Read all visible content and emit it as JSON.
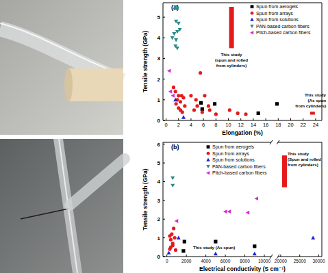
{
  "chart_data": [
    {
      "type": "scatter",
      "label": "(a)",
      "x_label": "Elongation (%)",
      "y_label": "Tensile strength (GPa)",
      "xlim": [
        -0.5,
        25
      ],
      "ylim": [
        0,
        5.7
      ],
      "xticks": [
        0,
        2,
        4,
        6,
        8,
        10,
        12,
        14,
        16,
        18,
        20,
        22,
        24
      ],
      "yticks": [
        0,
        1,
        2,
        3,
        4,
        5
      ],
      "legend": "top",
      "series": [
        {
          "name": "Spun from aerogels",
          "color": "#000000",
          "marker": "square",
          "x": [
            5.6,
            5.8,
            7.8,
            14.8,
            17.8
          ],
          "y": [
            0.85,
            0.55,
            0.8,
            0.35,
            0.8
          ]
        },
        {
          "name": "Spun from arrays",
          "color": "#e41a1c",
          "marker": "circle",
          "x": [
            1.2,
            1.5,
            1.8,
            2.0,
            2.3,
            2.5,
            2.8,
            1.6,
            2.0,
            2.3,
            3.0,
            2.6,
            4.0,
            4.5,
            4.8,
            5.0,
            5.5,
            5.8,
            6.2,
            6.8,
            7.0,
            8.0,
            10.2,
            11.5,
            12.8
          ],
          "y": [
            1.6,
            1.4,
            1.0,
            1.2,
            0.9,
            1.2,
            1.1,
            0.8,
            0.6,
            0.5,
            0.7,
            0.4,
            1.2,
            0.5,
            1.0,
            0.7,
            2.3,
            0.4,
            1.2,
            0.7,
            0.5,
            0.3,
            0.5,
            0.35,
            0.3
          ]
        },
        {
          "name": "Spun from solutions",
          "color": "#1f1fd6",
          "marker": "triangle-up",
          "x": [
            1.5,
            2.8
          ],
          "y": [
            1.0,
            0.15
          ]
        },
        {
          "name": "PAN-based carbon fibers",
          "color": "#2a8a8a",
          "marker": "triangle-down",
          "x": [
            1.5,
            1.8,
            1.6,
            2.0,
            1.8,
            2.2,
            1.3,
            1.0,
            1.6,
            1.5,
            1.8
          ],
          "y": [
            5.5,
            5.4,
            4.8,
            4.7,
            4.3,
            4.4,
            4.2,
            4.0,
            3.9,
            3.6,
            3.5
          ]
        },
        {
          "name": "Pitch-based carbon fibers",
          "color": "#d42ad4",
          "marker": "triangle-left",
          "x": [
            0.5,
            0.7,
            1.1
          ],
          "y": [
            2.4,
            1.4,
            1.2
          ]
        }
      ],
      "annotations": [
        {
          "text": [
            "This study",
            "(spun and rolled",
            "from cylinders)"
          ],
          "x": 10.5,
          "y_range": [
            3.5,
            5.5
          ],
          "color": "#e41a1c"
        },
        {
          "text": [
            "This study",
            "(As spun",
            "from cylinders)"
          ],
          "x": 23.5,
          "y_range": [
            0.28,
            0.42
          ],
          "color": "#e41a1c"
        }
      ]
    },
    {
      "type": "scatter",
      "label": "(b)",
      "x_label": "Electrical conductivity (S cm⁻¹)",
      "y_label": "Tensile strength (GPa)",
      "xlim": [
        -400,
        30800
      ],
      "x_break": [
        10700,
        19300
      ],
      "ylim": [
        0,
        6.1
      ],
      "xticks": [
        0,
        2000,
        4000,
        6000,
        8000,
        10000,
        20000,
        25000,
        30000
      ],
      "yticks": [
        0,
        1,
        2,
        3,
        4,
        5,
        6
      ],
      "legend": "top",
      "series": [
        {
          "name": "Spun from aerogels",
          "color": "#000000",
          "marker": "square",
          "x": [
            1700,
            1800,
            5000,
            9000
          ],
          "y": [
            0.3,
            0.8,
            0.8,
            0.55
          ]
        },
        {
          "name": "Spun from arrays",
          "color": "#e41a1c",
          "marker": "circle",
          "x": [
            300,
            400,
            500,
            300,
            700,
            600,
            800,
            400,
            900,
            600
          ],
          "y": [
            0.4,
            0.9,
            1.2,
            1.1,
            1.5,
            0.7,
            1.0,
            0.5,
            0.35,
            0.6
          ]
        },
        {
          "name": "Spun from solutions",
          "color": "#1f1fd6",
          "marker": "triangle-up",
          "x": [
            200,
            1200,
            5000,
            9000,
            28500
          ],
          "y": [
            0.2,
            1.0,
            0.15,
            0.15,
            1.0
          ]
        },
        {
          "name": "PAN-based carbon fibers",
          "color": "#2a8a8a",
          "marker": "triangle-down",
          "x": [
            600,
            600
          ],
          "y": [
            4.2,
            3.8
          ]
        },
        {
          "name": "Pitch-based carbon fibers",
          "color": "#d42ad4",
          "marker": "triangle-left",
          "x": [
            1000,
            6000,
            6400,
            8300,
            9200
          ],
          "y": [
            1.9,
            2.4,
            2.4,
            2.35,
            3.1
          ]
        }
      ],
      "annotations": [
        {
          "text": [
            "This study",
            "(Spun and rolled",
            "from cylinders)"
          ],
          "x": 21000,
          "y_range": [
            3.7,
            5.4
          ],
          "color": "#e41a1c"
        },
        {
          "text": [
            "This study (As spun)"
          ]
        }
      ]
    }
  ]
}
